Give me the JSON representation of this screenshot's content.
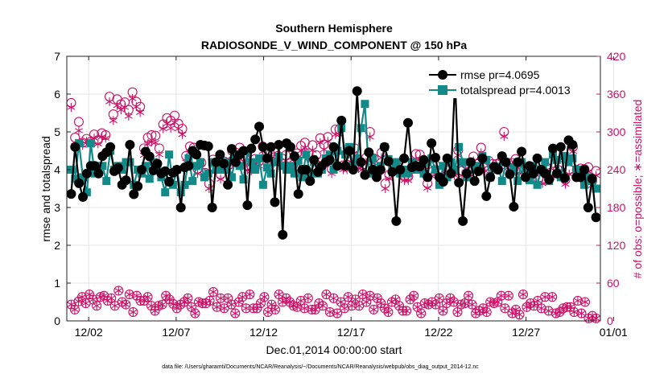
{
  "chart_data": {
    "type": "line",
    "title": "Southern Hemisphere",
    "subtitle": "RADIOSONDE_V_WIND_COMPONENT @ 150 hPa",
    "xlabel": "Dec.01,2014 00:00:00 start",
    "ylabel": "rmse and totalspread",
    "ylabel_right": "# of obs: o=possible; ∗=assimilated",
    "footnote": "data file: /Users/gharamti/Documents/NCAR/Reanalysis/~/Documents/NCAR/Reanalysis/webpub/obs_diag_output_2014-12.nc",
    "xlim": [
      0.75,
      31.25
    ],
    "ylim": [
      0,
      7
    ],
    "ylim_right": [
      0,
      420
    ],
    "x_ticks": [
      2,
      7,
      12,
      17,
      22,
      27,
      32
    ],
    "x_ticklabels": [
      "12/02",
      "12/07",
      "12/12",
      "12/17",
      "12/22",
      "12/27",
      "01/01"
    ],
    "y_ticks": [
      0,
      1,
      2,
      3,
      4,
      5,
      6,
      7
    ],
    "y_ticklabels": [
      "0",
      "1",
      "2",
      "3",
      "4",
      "5",
      "6",
      "7"
    ],
    "y_ticks_right": [
      0,
      60,
      120,
      180,
      240,
      300,
      360,
      420
    ],
    "y_ticklabels_right": [
      "0",
      "60",
      "120",
      "180",
      "240",
      "300",
      "360",
      "420"
    ],
    "legend_location": "top-right",
    "colors": {
      "rmse": "#000000",
      "spread": "#138a8a",
      "obs": "#cc1166"
    },
    "series": [
      {
        "name": "rmse pr=4.0695",
        "color": "#000000",
        "marker": "circle",
        "values": [
          3.36,
          4.6,
          3.64,
          3.28,
          3.9,
          4.1,
          4.1,
          3.9,
          4.36,
          4.46,
          4.6,
          3.96,
          4.05,
          3.6,
          3.72,
          4.66,
          3.35,
          3.56,
          4.0,
          4.48,
          4.35,
          3.98,
          4.16,
          3.9,
          3.96,
          3.68,
          3.92,
          4.0,
          3.0,
          4.06,
          4.1,
          4.5,
          4.4,
          4.66,
          4.64,
          4.62,
          3.0,
          4.2,
          4.4,
          4.16,
          3.6,
          4.55,
          4.2,
          4.4,
          4.5,
          3.06,
          4.56,
          4.8,
          5.14,
          4.6,
          4.3,
          4.6,
          3.14,
          4.66,
          2.28,
          4.7,
          4.6,
          4.36,
          3.36,
          4.0,
          4.0,
          3.7,
          4.26,
          3.94,
          4.1,
          4.2,
          4.26,
          4.6,
          4.1,
          5.3,
          4.1,
          4.5,
          4.0,
          6.08,
          4.2,
          3.86,
          4.46,
          4.0,
          3.8,
          4.0,
          4.6,
          4.22,
          3.94,
          2.64,
          4.0,
          4.3,
          5.24,
          4.06,
          4.1,
          4.08,
          4.26,
          3.8,
          4.7,
          4.32,
          3.8,
          3.68,
          4.3,
          3.9,
          6.38,
          3.66,
          2.64,
          3.9,
          4.2,
          3.7,
          3.96,
          4.3,
          3.3,
          3.8,
          4.08,
          4.0,
          4.36,
          4.2,
          3.88,
          3.02,
          4.2,
          4.48,
          3.8,
          4.1,
          3.9,
          4.3,
          4.0,
          3.9,
          3.74,
          4.56,
          3.9,
          4.6,
          3.78,
          4.78,
          4.66,
          3.8,
          3.8,
          4.0,
          3.0,
          3.76,
          2.74
        ],
        "style": "solid"
      },
      {
        "name": "totalspread pr=4.0013",
        "color": "#138a8a",
        "marker": "square",
        "values": [
          4.0,
          3.76,
          4.7,
          3.8,
          3.4,
          4.7,
          3.9,
          4.1,
          4.1,
          3.7,
          4.5,
          4.0,
          4.1,
          4.0,
          4.2,
          4.2,
          3.6,
          4.0,
          3.9,
          4.1,
          3.76,
          4.2,
          4.0,
          3.8,
          3.4,
          4.4,
          3.6,
          4.0,
          3.4,
          3.6,
          4.3,
          3.7,
          4.1,
          4.2,
          3.8,
          3.9,
          4.2,
          4.0,
          4.24,
          4.0,
          4.2,
          3.8,
          4.4,
          4.1,
          3.74,
          4.5,
          4.2,
          4.0,
          4.3,
          3.6,
          4.06,
          3.9,
          4.2,
          4.34,
          4.1,
          4.0,
          4.1,
          3.9,
          4.24,
          3.8,
          4.4,
          3.9,
          4.2,
          3.9,
          4.0,
          4.3,
          4.4,
          4.0,
          4.5,
          5.1,
          4.4,
          4.6,
          4.1,
          4.3,
          5.1,
          5.74,
          3.9,
          4.3,
          4.0,
          4.1,
          4.6,
          4.28,
          4.0,
          4.2,
          3.9,
          4.0,
          3.9,
          4.2,
          4.0,
          4.1,
          3.9,
          4.2,
          4.3,
          4.0,
          3.6,
          4.1,
          3.8,
          4.2,
          4.0,
          4.6,
          4.2,
          3.8,
          4.2,
          4.0,
          4.1,
          4.36,
          4.26,
          3.8,
          4.0,
          4.08,
          3.7,
          4.2,
          3.9,
          4.06,
          3.7,
          4.2,
          4.0,
          3.72,
          4.1,
          3.6,
          4.0,
          4.2,
          3.7,
          4.4,
          4.26,
          3.8,
          4.36,
          4.2,
          4.3,
          4.0,
          4.0,
          3.6,
          3.8,
          3.7,
          3.5
        ]
      },
      {
        "name": "possible",
        "color": "#cc1166",
        "marker": "o",
        "values": [
          346,
          291,
          316,
          283,
          289,
          284,
          296,
          287,
          298,
          295,
          356,
          328,
          352,
          344,
          347,
          335,
          363,
          348,
          340,
          274,
          291,
          295,
          294,
          274,
          312,
          322,
          318,
          326,
          313,
          305,
          262,
          277,
          275,
          241,
          251,
          235,
          218,
          256,
          248,
          232,
          253,
          247,
          270,
          267,
          275,
          262,
          246,
          246,
          257,
          253,
          277,
          268,
          265,
          260,
          262,
          258,
          263,
          250,
          248,
          266,
          278,
          283,
          266,
          279,
          263,
          290,
          280,
          292,
          241,
          304,
          304,
          247,
          248,
          260,
          274,
          249,
          247,
          259,
          300,
          258,
          235,
          267,
          218,
          232,
          243,
          247,
          238,
          229,
          229,
          245,
          265,
          264,
          246,
          218,
          236,
          248,
          238,
          229,
          243,
          240,
          237,
          271,
          238,
          249,
          236,
          261,
          249,
          275,
          245,
          254,
          249,
          249,
          252,
          300,
          251,
          251,
          257,
          241,
          243,
          244,
          244,
          240,
          225,
          224,
          244,
          235,
          237,
          240,
          246,
          224,
          240,
          276,
          240,
          242,
          241,
          244,
          222,
          238
        ]
      },
      {
        "name": "assimilated",
        "color": "#cc1166",
        "marker": "*",
        "values": [
          339,
          278,
          302,
          279,
          285,
          279,
          290,
          281,
          292,
          290,
          348,
          318,
          342,
          335,
          339,
          325,
          353,
          340,
          331,
          263,
          281,
          284,
          283,
          264,
          305,
          313,
          306,
          315,
          305,
          296,
          252,
          268,
          267,
          234,
          244,
          228,
          210,
          248,
          240,
          225,
          245,
          239,
          262,
          259,
          267,
          253,
          239,
          238,
          250,
          246,
          269,
          261,
          257,
          252,
          254,
          250,
          254,
          243,
          241,
          259,
          270,
          275,
          258,
          271,
          256,
          283,
          272,
          285,
          234,
          296,
          296,
          240,
          240,
          252,
          267,
          242,
          240,
          252,
          292,
          251,
          228,
          259,
          210,
          226,
          237,
          240,
          232,
          223,
          223,
          238,
          257,
          257,
          239,
          211,
          230,
          241,
          231,
          222,
          236,
          233,
          231,
          263,
          231,
          242,
          229,
          254,
          242,
          267,
          238,
          247,
          242,
          242,
          245,
          293,
          243,
          243,
          249,
          234,
          236,
          237,
          237,
          233,
          219,
          218,
          237,
          228,
          230,
          233,
          239,
          217,
          233,
          269,
          233,
          235,
          234,
          237,
          215,
          231
        ]
      },
      {
        "name": "possible_low",
        "color": "#cc1166",
        "marker": "o",
        "values": [
          26,
          18,
          31,
          38,
          28,
          42,
          34,
          24,
          38,
          40,
          32,
          36,
          24,
          48,
          30,
          26,
          42,
          14,
          40,
          32,
          32,
          38,
          24,
          16,
          24,
          26,
          40,
          34,
          27,
          20,
          26,
          30,
          36,
          22,
          12,
          30,
          28,
          28,
          32,
          46,
          22,
          36,
          20,
          36,
          26,
          12,
          30,
          38,
          20,
          42,
          20,
          20,
          28,
          38,
          14,
          26,
          18,
          42,
          30,
          36,
          30,
          24,
          22,
          32,
          20,
          36,
          18,
          18,
          28,
          24,
          42,
          14,
          36,
          12,
          30,
          20,
          38,
          24,
          34,
          24,
          42,
          30,
          40,
          18,
          36,
          28,
          20,
          14,
          30,
          34,
          24,
          16,
          16,
          34,
          40,
          22,
          12,
          28,
          26,
          30,
          26,
          36,
          16,
          28,
          36,
          30,
          14,
          26,
          28,
          40,
          26,
          12,
          16,
          20,
          14,
          30,
          28,
          30,
          40,
          20,
          40,
          12,
          18,
          10,
          42,
          22,
          28,
          24,
          32,
          20,
          38,
          16,
          38,
          12,
          14,
          20,
          22,
          22,
          14,
          32,
          12,
          30,
          4,
          8,
          4
        ]
      }
    ]
  }
}
